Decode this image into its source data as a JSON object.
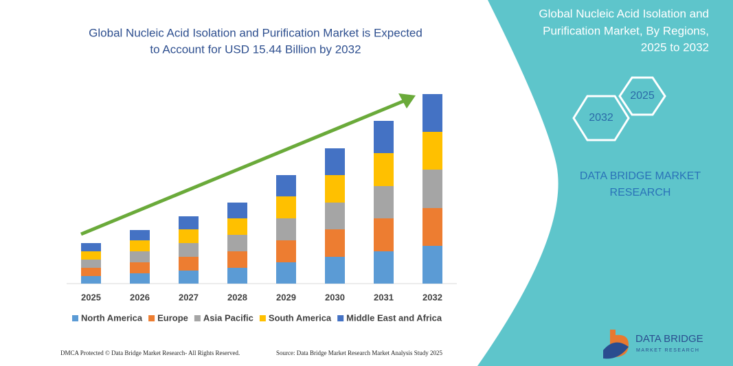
{
  "chart_data": {
    "type": "stacked_bar",
    "title": [
      "Global Nucleic Acid Isolation and Purification Market is Expected",
      "to Account for USD 15.44 Billion by 2032"
    ],
    "categories": [
      "2025",
      "2026",
      "2027",
      "2028",
      "2029",
      "2030",
      "2031",
      "2032"
    ],
    "series": [
      {
        "name": "North America",
        "color": "#5b9bd5",
        "values": [
          11,
          15,
          19,
          23,
          31,
          39,
          47,
          55
        ]
      },
      {
        "name": "Europe",
        "color": "#ed7d31",
        "values": [
          12,
          16,
          20,
          24,
          32,
          40,
          48,
          55
        ]
      },
      {
        "name": "Asia Pacific",
        "color": "#a5a5a5",
        "values": [
          12,
          16,
          20,
          24,
          32,
          39,
          47,
          56
        ]
      },
      {
        "name": "South America",
        "color": "#ffc000",
        "values": [
          12,
          16,
          20,
          24,
          32,
          40,
          48,
          55
        ]
      },
      {
        "name": "Middle East and Africa",
        "color": "#4472c4",
        "values": [
          12,
          15,
          19,
          23,
          31,
          39,
          47,
          55
        ]
      }
    ],
    "ylim": [
      0,
      280
    ],
    "legend": "bottom"
  },
  "panel": {
    "title": [
      "Global Nucleic Acid Isolation and",
      "Purification Market, By Regions,",
      "2025 to 2032"
    ],
    "hex_end": "2032",
    "hex_start": "2025",
    "brand": [
      "DATA BRIDGE MARKET",
      "RESEARCH"
    ]
  },
  "footer": {
    "left": "DMCA Protected © Data Bridge Market Research- All Rights Reserved.",
    "right": "Source: Data Bridge Market Research Market Analysis Study 2025"
  },
  "logo": {
    "name": "DATA BRIDGE",
    "tagline": "MARKET RESEARCH"
  }
}
